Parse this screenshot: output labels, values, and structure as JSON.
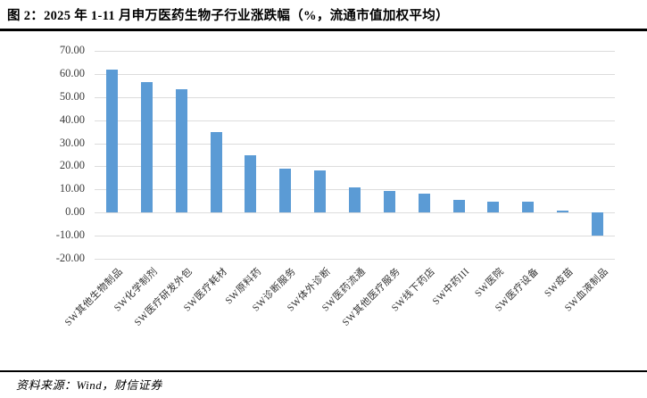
{
  "figure": {
    "title": "图 2：2025 年 1-11 月申万医药生物子行业涨跌幅（%，流通市值加权平均）",
    "source_note": "资料来源：Wind，财信证券"
  },
  "colors": {
    "bar": "#5B9BD5",
    "gridline": "#dcdcdc",
    "rule": "#000000",
    "axis_text": "#3a3a3a"
  },
  "chart_data": {
    "type": "bar",
    "title": "2025年1-11月申万医药生物子行业涨跌幅（%，流通市值加权平均）",
    "xlabel": "",
    "ylabel": "",
    "ylim": [
      -20,
      70
    ],
    "grid": true,
    "legend": false,
    "bar_orientation": "vertical",
    "categories": [
      "SW其他生物制品",
      "SW化学制剂",
      "SW医疗研发外包",
      "SW医疗耗材",
      "SW原料药",
      "SW诊断服务",
      "SW体外诊断",
      "SW医药流通",
      "SW其他医疗服务",
      "SW线下药店",
      "SW中药III",
      "SW医院",
      "SW医疗设备",
      "SW疫苗",
      "SW血液制品"
    ],
    "values": [
      62.0,
      56.4,
      53.5,
      34.7,
      24.8,
      18.9,
      18.3,
      11.0,
      9.3,
      8.1,
      5.4,
      4.6,
      4.7,
      0.9,
      -9.9
    ],
    "yticks": [
      {
        "value": 70,
        "label": "70.00"
      },
      {
        "value": 60,
        "label": "60.00"
      },
      {
        "value": 50,
        "label": "50.00"
      },
      {
        "value": 40,
        "label": "40.00"
      },
      {
        "value": 30,
        "label": "30.00"
      },
      {
        "value": 20,
        "label": "20.00"
      },
      {
        "value": 10,
        "label": "10.00"
      },
      {
        "value": 0,
        "label": "0.00"
      },
      {
        "value": -10,
        "label": "-10.00"
      },
      {
        "value": -20,
        "label": "-20.00"
      }
    ]
  }
}
